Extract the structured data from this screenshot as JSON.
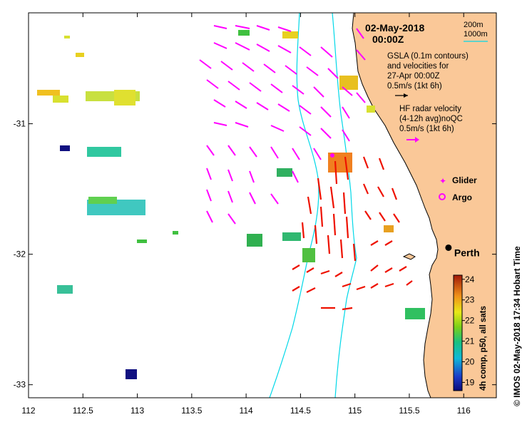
{
  "map": {
    "date_label": "02-May-2018",
    "time_label": "00:00Z",
    "contour_legend": {
      "line1": "200m",
      "line2": "1000m"
    },
    "gsla_note": {
      "line1": "GSLA (0.1m contours)",
      "line2": "and velocities for",
      "line3": "27-Apr 00:00Z",
      "line4": "0.5m/s (1kt 6h)"
    },
    "hf_note": {
      "line1": "HF radar velocity",
      "line2": "(4-12h avg)noQC",
      "line3": "0.5m/s (1kt 6h)"
    },
    "legend_glider": "Glider",
    "legend_argo": "Argo",
    "city": "Perth",
    "city_lon": 115.86,
    "city_lat": -31.95,
    "colorbar": {
      "label": "4h comp, p50, all sats",
      "ticks": [
        "19",
        "20",
        "21",
        "22",
        "23",
        "24"
      ],
      "min": 18.6,
      "max": 24.2
    },
    "credit": "© IMOS 02-May-2018 17:34 Hobart Time",
    "x_axis": {
      "ticks": [
        "112",
        "112.5",
        "113",
        "113.5",
        "114",
        "114.5",
        "115",
        "115.5",
        "116"
      ],
      "range": [
        112,
        116.3
      ]
    },
    "y_axis": {
      "ticks": [
        "-31",
        "-32",
        "-33"
      ],
      "range": [
        -33.1,
        -30.15
      ]
    },
    "colors": {
      "land": "#fac898",
      "contour": "#00d8e8",
      "hf_vector": "#ff00ff",
      "radar_vector": "#ee1100",
      "gsla_arrow": "#000000"
    }
  }
}
